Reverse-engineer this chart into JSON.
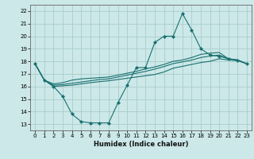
{
  "title": "",
  "xlabel": "Humidex (Indice chaleur)",
  "xlim": [
    -0.5,
    23.5
  ],
  "ylim": [
    12.5,
    22.5
  ],
  "yticks": [
    13,
    14,
    15,
    16,
    17,
    18,
    19,
    20,
    21,
    22
  ],
  "xticks": [
    0,
    1,
    2,
    3,
    4,
    5,
    6,
    7,
    8,
    9,
    10,
    11,
    12,
    13,
    14,
    15,
    16,
    17,
    18,
    19,
    20,
    21,
    22,
    23
  ],
  "bg_color": "#cce8e8",
  "grid_color": "#aacccc",
  "line_color": "#1a7070",
  "line1": [
    17.8,
    16.5,
    16.0,
    15.2,
    13.8,
    13.2,
    13.1,
    13.1,
    13.1,
    14.7,
    16.1,
    17.5,
    17.5,
    19.5,
    20.0,
    20.0,
    21.8,
    20.5,
    19.0,
    18.5,
    18.4,
    18.2,
    18.1,
    17.8
  ],
  "line2": [
    17.8,
    16.5,
    16.2,
    16.3,
    16.5,
    16.6,
    16.65,
    16.7,
    16.75,
    16.9,
    17.05,
    17.2,
    17.4,
    17.55,
    17.75,
    18.0,
    18.1,
    18.3,
    18.55,
    18.65,
    18.7,
    18.2,
    18.1,
    17.8
  ],
  "line3": [
    17.8,
    16.5,
    16.1,
    16.15,
    16.25,
    16.35,
    16.45,
    16.55,
    16.6,
    16.75,
    16.9,
    17.05,
    17.2,
    17.38,
    17.58,
    17.82,
    17.95,
    18.1,
    18.3,
    18.42,
    18.5,
    18.2,
    18.1,
    17.8
  ],
  "line4": [
    17.8,
    16.5,
    16.0,
    16.05,
    16.1,
    16.2,
    16.3,
    16.38,
    16.45,
    16.55,
    16.65,
    16.75,
    16.85,
    16.95,
    17.15,
    17.45,
    17.6,
    17.75,
    17.9,
    18.0,
    18.2,
    18.1,
    18.05,
    17.8
  ]
}
